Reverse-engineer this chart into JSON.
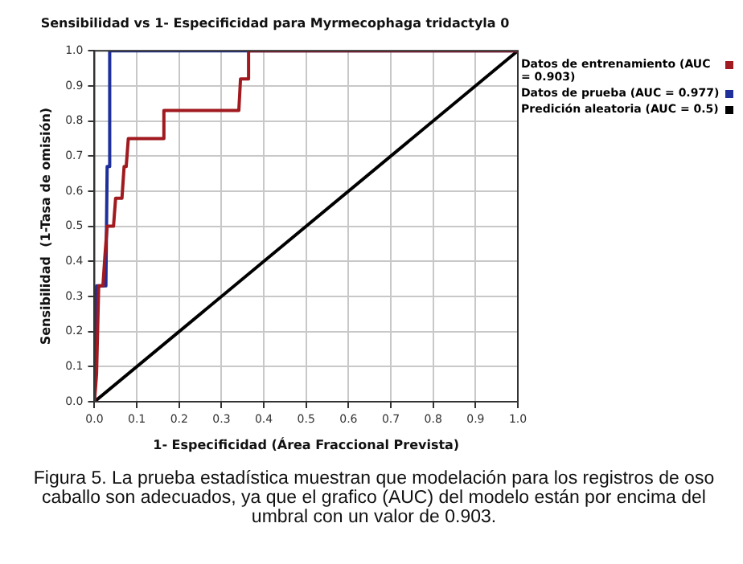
{
  "chart_data": {
    "type": "line",
    "title": "Sensibilidad vs 1- Especificidad para Myrmecophaga tridactyla 0",
    "xlabel": "1- Especificidad (Área Fraccional Prevista)",
    "ylabel": "Sensibilidad  (1-Tasa de omisión)",
    "series": [
      {
        "name": "Datos de entrenamiento (AUC = 0.903)",
        "color": "#a01a1f",
        "x": [
          0,
          0.005,
          0.01,
          0.02,
          0.025,
          0.03,
          0.045,
          0.05,
          0.065,
          0.07,
          0.075,
          0.08,
          0.164,
          0.164,
          0.341,
          0.345,
          0.364,
          0.364,
          1
        ],
        "values": [
          0,
          0.08,
          0.33,
          0.33,
          0.42,
          0.5,
          0.5,
          0.58,
          0.58,
          0.67,
          0.67,
          0.75,
          0.75,
          0.83,
          0.83,
          0.92,
          0.92,
          1,
          1
        ]
      },
      {
        "name": "Datos de prueba (AUC = 0.977)",
        "color": "#1f2f9a",
        "x": [
          0,
          0.005,
          0.027,
          0.03,
          0.036,
          0.036,
          1
        ],
        "values": [
          0,
          0.33,
          0.33,
          0.67,
          0.67,
          1,
          1
        ]
      },
      {
        "name": "Predición aleatoria (AUC = 0.5)",
        "color": "#000000",
        "x": [
          0,
          1
        ],
        "values": [
          0,
          1
        ]
      }
    ],
    "xlim": [
      0,
      1
    ],
    "ylim": [
      0,
      1
    ],
    "xticks": [
      {
        "value": 0,
        "label": "0.0"
      },
      0.1,
      0.2,
      0.3,
      0.4,
      0.5,
      0.6,
      0.7,
      0.8,
      0.9,
      {
        "value": 1,
        "label": "1.0"
      }
    ],
    "yticks": [
      {
        "value": 0,
        "label": "0.0"
      },
      0.1,
      0.2,
      0.3,
      0.4,
      0.5,
      0.6,
      0.7,
      0.8,
      0.9,
      {
        "value": 1,
        "label": "1.0"
      }
    ],
    "grid": true,
    "legend": "top right",
    "marker": "none",
    "line_style": "solid",
    "annotations": [
      "Figura 5. La prueba estadística muestran que modelación para los registros de oso caballo son adecuados, ya que el grafico (AUC) del modelo están por encima del umbral con un valor de 0.903."
    ]
  }
}
